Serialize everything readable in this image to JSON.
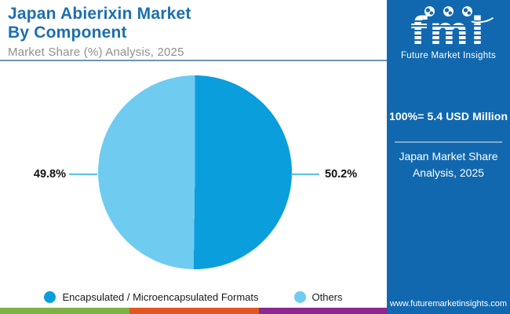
{
  "header": {
    "title_line1": "Japan Abierixin Market",
    "title_line2": "By Component",
    "subtitle": "Market Share (%) Analysis, 2025"
  },
  "chart_data": {
    "type": "pie",
    "title": "Japan Abierixin Market By Component",
    "subtitle": "Market Share (%) Analysis, 2025",
    "total_annotation": "100%= 5.4 USD Million",
    "unit": "%",
    "legend_position": "bottom",
    "slices": [
      {
        "label": "Encapsulated / Microencapsulated Formats",
        "value": 50.2,
        "pct_label": "50.2%",
        "color": "#0A9EDD"
      },
      {
        "label": "Others",
        "value": 49.8,
        "pct_label": "49.8%",
        "color": "#70CBF1"
      }
    ]
  },
  "sidebar": {
    "logo_text": "fmi",
    "logo_subtext": "Future Market Insights",
    "total_label": "100%= 5.4 USD Million",
    "note_line1": "Japan Market Share",
    "note_line2": "Analysis, 2025",
    "website": "www.futuremarketinsights.com"
  },
  "footer_stripe": {
    "segments": [
      {
        "name": "green",
        "color": "#7CB342"
      },
      {
        "name": "orange",
        "color": "#E2571E"
      },
      {
        "name": "purple",
        "color": "#8E278F"
      }
    ]
  },
  "colors": {
    "title_blue": "#1C6FAE",
    "subtitle_gray": "#8F8F8F",
    "sidebar_bg": "#1268AE",
    "header_rule": "#6C96B4",
    "leader_line": "#59C2EE"
  }
}
